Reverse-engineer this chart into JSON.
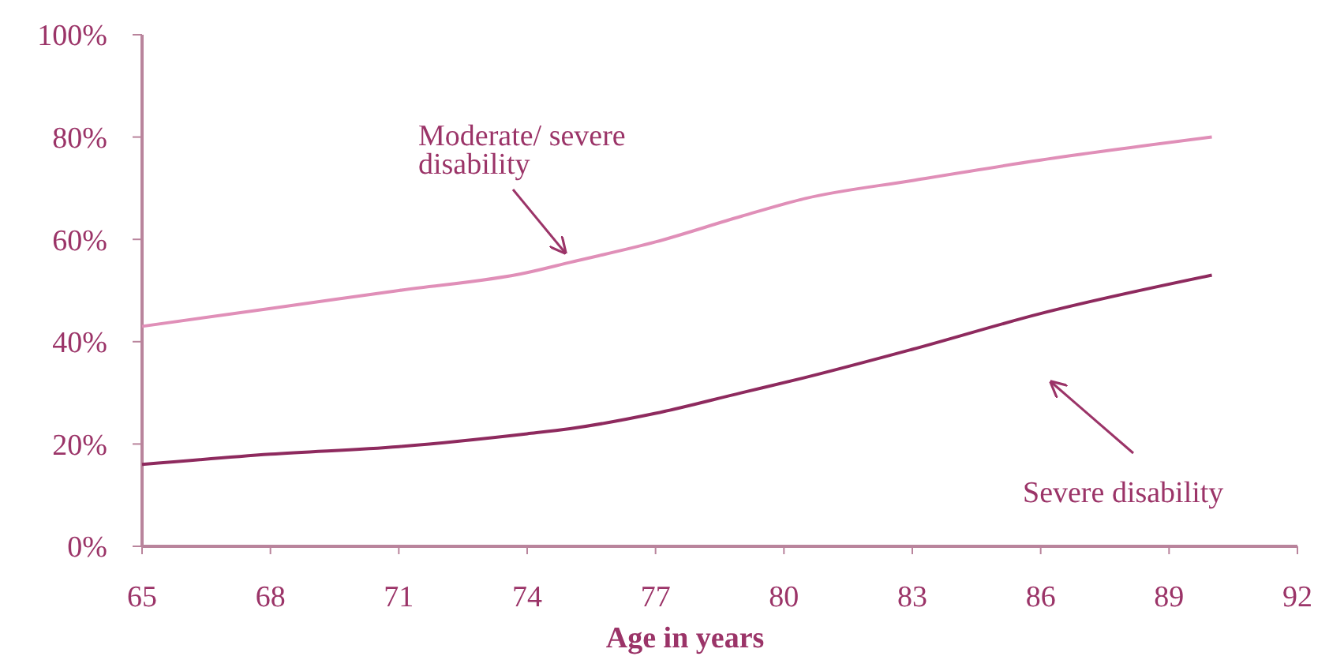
{
  "chart_data": {
    "type": "line",
    "xlabel": "Age in years",
    "x": [
      65,
      68,
      71,
      74,
      75,
      77,
      79,
      80.5,
      83,
      86,
      90
    ],
    "series": [
      {
        "name": "Moderate/ severe disability",
        "color": "#e08fb8",
        "values": [
          43,
          46.5,
          50,
          53.5,
          55.5,
          59.5,
          64.5,
          68,
          71.5,
          75.5,
          80
        ]
      },
      {
        "name": "Severe disability",
        "color": "#8e2a5e",
        "values": [
          16,
          18,
          19.5,
          22,
          23,
          26,
          30,
          33,
          38.5,
          45.5,
          53
        ]
      }
    ],
    "xlim": [
      65,
      92
    ],
    "xticks": [
      65,
      68,
      71,
      74,
      77,
      80,
      83,
      86,
      89,
      92
    ],
    "ylim": [
      0,
      100
    ],
    "yticks": [
      {
        "value": 0,
        "label": "0%"
      },
      {
        "value": 20,
        "label": "20%"
      },
      {
        "value": 40,
        "label": "40%"
      },
      {
        "value": 60,
        "label": "60%"
      },
      {
        "value": 80,
        "label": "80%"
      },
      {
        "value": 100,
        "label": "100%"
      }
    ],
    "grid": false,
    "legend": "bottom right",
    "marker": "none",
    "line_style": "solid"
  }
}
